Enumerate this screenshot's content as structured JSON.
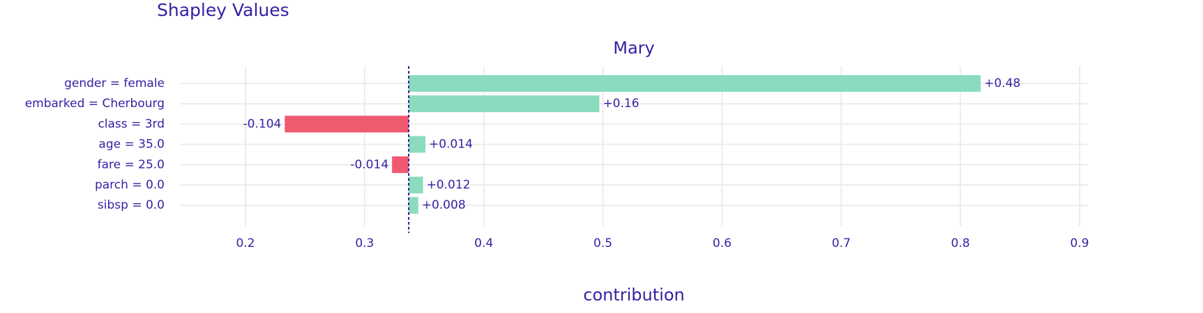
{
  "chart_data": {
    "type": "bar",
    "title": "Shapley Values",
    "subtitle": "Mary",
    "x_label": "contribution",
    "categories": [
      "gender = female",
      "embarked = Cherbourg",
      "class = 3rd",
      "age = 35.0",
      "fare = 25.0",
      "parch = 0.0",
      "sibsp = 0.0"
    ],
    "values": [
      0.48,
      0.16,
      -0.104,
      0.014,
      -0.014,
      0.012,
      0.008
    ],
    "value_labels": [
      "+0.48",
      "+0.16",
      "-0.104",
      "+0.014",
      "-0.014",
      "+0.012",
      "+0.008"
    ],
    "colors": [
      "#8bdcbe",
      "#8bdcbe",
      "#f05a71",
      "#8bdcbe",
      "#f05a71",
      "#8bdcbe",
      "#8bdcbe"
    ],
    "baseline": 0.337,
    "baseline_color": "#371ea3",
    "xlim": [
      0.145,
      0.907
    ],
    "xticks": [
      0.2,
      0.3,
      0.4,
      0.5,
      0.6,
      0.7,
      0.8,
      0.9
    ],
    "grid": true
  }
}
